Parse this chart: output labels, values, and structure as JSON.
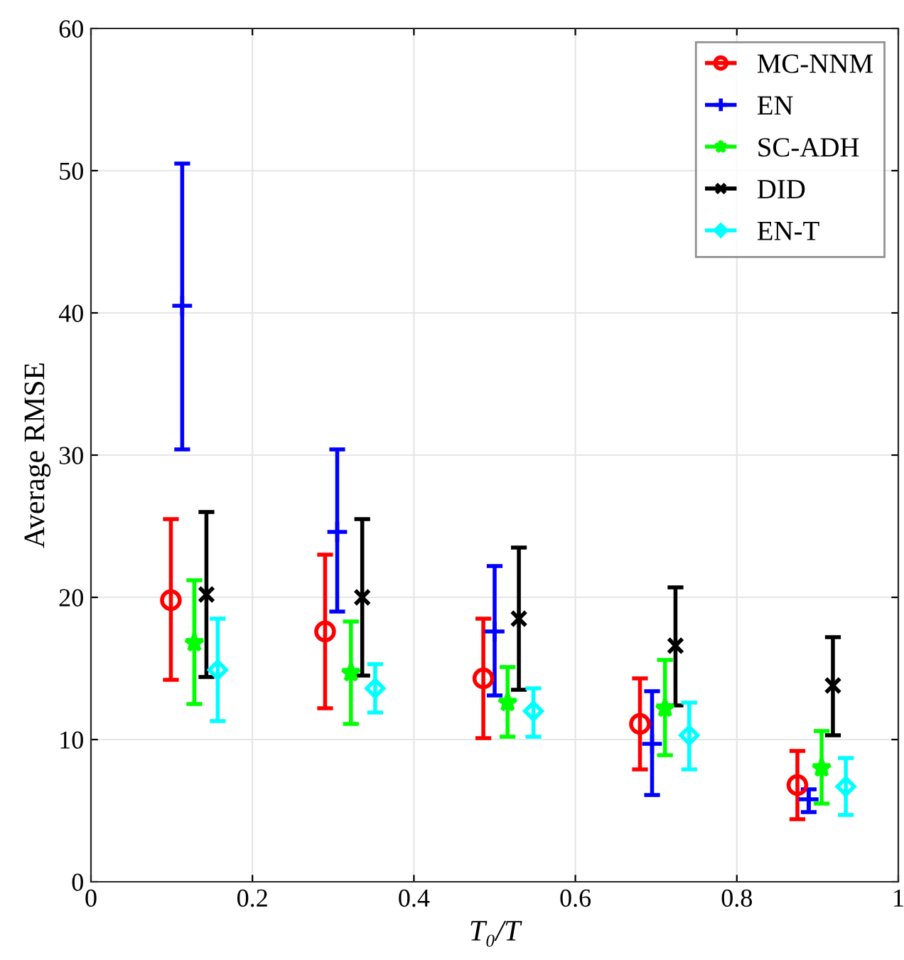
{
  "chart_data": {
    "type": "scatter",
    "xlabel": "T₀/T",
    "ylabel": "Average RMSE",
    "xlim": [
      0,
      1
    ],
    "xticks": [
      0,
      0.2,
      0.4,
      0.6,
      0.8,
      1
    ],
    "ylim": [
      0,
      60
    ],
    "yticks": [
      0,
      10,
      20,
      30,
      40,
      50,
      60
    ],
    "grid": true,
    "legend": "top right",
    "series": [
      {
        "name": "MC-NNM",
        "color": "#ff0000",
        "marker": "circle",
        "x": [
          0.099,
          0.29,
          0.486,
          0.68,
          0.875
        ],
        "values": [
          19.8,
          17.6,
          14.3,
          11.1,
          6.8
        ],
        "errors": [
          [
            14.2,
            25.5
          ],
          [
            12.2,
            23.0
          ],
          [
            10.1,
            18.5
          ],
          [
            7.9,
            14.3
          ],
          [
            4.4,
            9.2
          ]
        ]
      },
      {
        "name": "EN",
        "color": "#0000ff",
        "marker": "plus",
        "x": [
          0.113,
          0.305,
          0.5,
          0.695,
          0.889
        ],
        "values": [
          40.5,
          24.6,
          17.6,
          9.7,
          5.8
        ],
        "errors": [
          [
            30.4,
            50.5
          ],
          [
            19.0,
            30.4
          ],
          [
            13.1,
            22.2
          ],
          [
            6.1,
            13.4
          ],
          [
            4.9,
            6.5
          ]
        ]
      },
      {
        "name": "SC-ADH",
        "color": "#00ff00",
        "marker": "star",
        "x": [
          0.128,
          0.322,
          0.516,
          0.711,
          0.905
        ],
        "values": [
          16.8,
          14.7,
          12.6,
          12.2,
          8.0
        ],
        "errors": [
          [
            12.5,
            21.2
          ],
          [
            11.1,
            18.3
          ],
          [
            10.2,
            15.1
          ],
          [
            8.9,
            15.6
          ],
          [
            5.5,
            10.6
          ]
        ]
      },
      {
        "name": "DID",
        "color": "#000000",
        "marker": "cross",
        "x": [
          0.143,
          0.336,
          0.53,
          0.724,
          0.919
        ],
        "values": [
          20.2,
          20.0,
          18.5,
          16.6,
          13.8
        ],
        "errors": [
          [
            14.4,
            26.0
          ],
          [
            14.5,
            25.5
          ],
          [
            13.5,
            23.5
          ],
          [
            12.4,
            20.7
          ],
          [
            10.3,
            17.2
          ]
        ]
      },
      {
        "name": "EN-T",
        "color": "#00ffff",
        "marker": "diamond",
        "x": [
          0.157,
          0.352,
          0.548,
          0.741,
          0.935
        ],
        "values": [
          14.9,
          13.6,
          12.0,
          10.3,
          6.7
        ],
        "errors": [
          [
            11.3,
            18.5
          ],
          [
            11.9,
            15.3
          ],
          [
            10.2,
            13.6
          ],
          [
            7.9,
            12.6
          ],
          [
            4.7,
            8.7
          ]
        ]
      }
    ]
  }
}
